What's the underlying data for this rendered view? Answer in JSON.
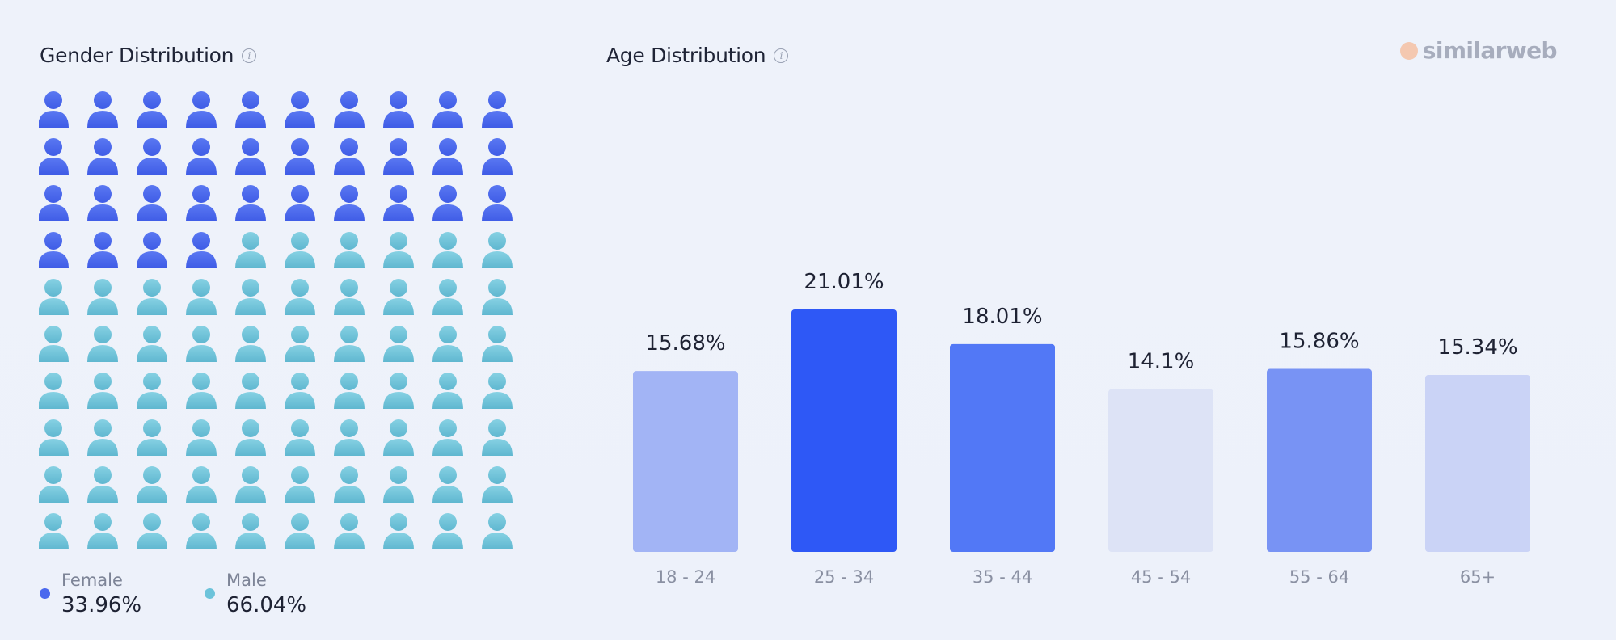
{
  "brand": {
    "name": "similarweb",
    "logo_colors": [
      "#f2b08a",
      "#f4c8b0"
    ]
  },
  "gender": {
    "title": "Gender Distribution",
    "info_icon": "info-icon",
    "female": {
      "label": "Female",
      "value": "33.96%",
      "color": "#4a68ee"
    },
    "male": {
      "label": "Male",
      "value": "66.04%",
      "color": "#6cc3da"
    }
  },
  "age": {
    "title": "Age Distribution",
    "info_icon": "info-icon"
  },
  "chart_data": [
    {
      "type": "pictograph",
      "grid": {
        "rows": 10,
        "cols": 10
      },
      "series": [
        {
          "name": "Female",
          "count": 34,
          "percent": 33.96,
          "color": "#4a68ee"
        },
        {
          "name": "Male",
          "count": 66,
          "percent": 66.04,
          "color": "#6cc3da"
        }
      ],
      "title": "Gender Distribution",
      "legend": "bottom-left"
    },
    {
      "type": "bar",
      "title": "Age Distribution",
      "categories": [
        "18 - 24",
        "25 - 34",
        "35 - 44",
        "45 - 54",
        "55 - 64",
        "65+"
      ],
      "values": [
        15.68,
        21.01,
        18.01,
        14.1,
        15.86,
        15.34
      ],
      "labels": [
        "15.68%",
        "21.01%",
        "18.01%",
        "14.1%",
        "15.86%",
        "15.34%"
      ],
      "colors": [
        "#a2b4f5",
        "#2e58f6",
        "#5278f6",
        "#dde3f6",
        "#7893f4",
        "#cad3f6"
      ],
      "ylim": [
        0,
        21.01
      ],
      "grid": false
    }
  ]
}
